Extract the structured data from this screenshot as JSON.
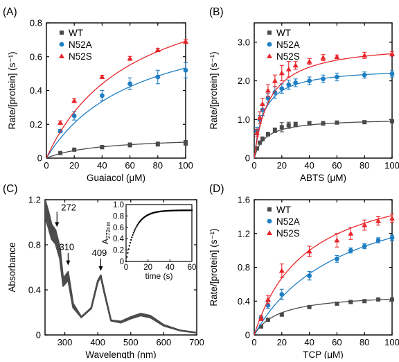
{
  "colors": {
    "wt": "#4a4a4a",
    "n52a": "#1f7fc4",
    "n52s": "#e8262b",
    "spectrum": "#4d4d4d"
  },
  "chart_data": [
    {
      "id": "A",
      "panel_label": "(A)",
      "type": "scatter",
      "xlabel": "Guaiacol (μM)",
      "ylabel": "Rate/[protein] (s⁻¹)",
      "xlim": [
        0,
        100
      ],
      "ylim": [
        0,
        0.8
      ],
      "xticks": [
        0,
        20,
        40,
        60,
        80,
        100
      ],
      "yticks": [
        0,
        0.2,
        0.4,
        0.6,
        0.8
      ],
      "ytick_labels": [
        "0",
        "0.2",
        "0.4",
        "0.6",
        "0.8"
      ],
      "legend": "top-left",
      "series": [
        {
          "name": "WT",
          "marker": "square",
          "color": "#4a4a4a",
          "x": [
            10,
            20,
            40,
            60,
            80,
            100
          ],
          "y": [
            0.03,
            0.05,
            0.065,
            0.078,
            0.083,
            0.09
          ],
          "err": [
            0.005,
            0.006,
            0.01,
            0.012,
            0.012,
            0.015
          ],
          "fit": {
            "vmax": 0.13,
            "km": 38
          }
        },
        {
          "name": "N52A",
          "marker": "circle",
          "color": "#1f7fc4",
          "x": [
            10,
            20,
            40,
            60,
            80,
            100
          ],
          "y": [
            0.16,
            0.25,
            0.37,
            0.44,
            0.48,
            0.52
          ],
          "err": [
            0.01,
            0.025,
            0.03,
            0.035,
            0.04,
            0.045
          ],
          "fit": {
            "vmax": 0.88,
            "km": 65
          }
        },
        {
          "name": "N52S",
          "marker": "triangle",
          "color": "#e8262b",
          "x": [
            10,
            20,
            40,
            60,
            80,
            100
          ],
          "y": [
            0.21,
            0.34,
            0.48,
            0.59,
            0.64,
            0.69
          ],
          "err": [
            0.01,
            0.012,
            0.01,
            0.012,
            0.01,
            0.012
          ],
          "fit": {
            "vmax": 1.12,
            "km": 62
          }
        }
      ]
    },
    {
      "id": "B",
      "panel_label": "(B)",
      "type": "scatter",
      "xlabel": "ABTS (μM)",
      "ylabel": "Rate/[protein] (s⁻¹)",
      "xlim": [
        0,
        100
      ],
      "ylim": [
        0,
        3.5
      ],
      "xticks": [
        0,
        20,
        40,
        60,
        80,
        100
      ],
      "yticks": [
        0,
        1,
        2,
        3
      ],
      "ytick_labels": [
        "0",
        "1.0",
        "2.0",
        "3.0"
      ],
      "legend": "top-left",
      "series": [
        {
          "name": "WT",
          "marker": "square",
          "color": "#4a4a4a",
          "x": [
            2,
            4,
            6,
            10,
            15,
            20,
            25,
            30,
            40,
            50,
            60,
            80,
            100
          ],
          "y": [
            0.25,
            0.4,
            0.5,
            0.62,
            0.72,
            0.8,
            0.85,
            0.87,
            0.9,
            0.9,
            0.92,
            0.93,
            0.95
          ],
          "err": [
            0.03,
            0.04,
            0.05,
            0.05,
            0.06,
            0.12,
            0.08,
            0.06,
            0.05,
            0.05,
            0.04,
            0.04,
            0.04
          ],
          "fit": {
            "vmax": 1.03,
            "km": 8
          }
        },
        {
          "name": "N52A",
          "marker": "circle",
          "color": "#1f7fc4",
          "x": [
            2,
            4,
            6,
            10,
            15,
            20,
            25,
            30,
            40,
            50,
            60,
            80,
            100
          ],
          "y": [
            0.7,
            1.0,
            1.25,
            1.55,
            1.7,
            1.8,
            1.9,
            1.95,
            2.0,
            2.05,
            2.1,
            2.15,
            2.18
          ],
          "err": [
            0.1,
            0.1,
            0.15,
            0.12,
            0.15,
            0.12,
            0.12,
            0.1,
            0.1,
            0.1,
            0.1,
            0.08,
            0.08
          ],
          "fit": {
            "vmax": 2.35,
            "km": 7
          }
        },
        {
          "name": "N52S",
          "marker": "triangle",
          "color": "#e8262b",
          "x": [
            2,
            4,
            6,
            10,
            15,
            20,
            25,
            30,
            40,
            50,
            60,
            80,
            100
          ],
          "y": [
            0.65,
            1.05,
            1.4,
            1.75,
            2.0,
            2.2,
            2.3,
            2.4,
            2.5,
            2.6,
            2.62,
            2.66,
            2.7
          ],
          "err": [
            0.1,
            0.15,
            0.15,
            0.15,
            0.15,
            0.2,
            0.2,
            0.1,
            0.08,
            0.08,
            0.05,
            0.08,
            0.06
          ],
          "fit": {
            "vmax": 3.0,
            "km": 11
          }
        }
      ]
    },
    {
      "id": "C",
      "panel_label": "(C)",
      "type": "line",
      "xlabel": "Wavelength (nm)",
      "ylabel": "Absorbance",
      "xlim": [
        240,
        700
      ],
      "ylim": [
        0,
        1.2
      ],
      "xticks": [
        300,
        400,
        500,
        600,
        700
      ],
      "yticks": [
        0,
        0.4,
        0.8,
        1.2
      ],
      "ytick_labels": [
        "0",
        "0.4",
        "0.8",
        "1.2"
      ],
      "annotations": [
        {
          "text": "272",
          "x": 272,
          "y": 0.97
        },
        {
          "text": "310",
          "x": 310,
          "y": 0.63
        },
        {
          "text": "409",
          "x": 409,
          "y": 0.58
        }
      ],
      "spectrum_points": [
        [
          240,
          1.2
        ],
        [
          250,
          1.1
        ],
        [
          260,
          0.98
        ],
        [
          272,
          0.93
        ],
        [
          285,
          0.78
        ],
        [
          295,
          0.5
        ],
        [
          310,
          0.56
        ],
        [
          325,
          0.28
        ],
        [
          350,
          0.16
        ],
        [
          380,
          0.24
        ],
        [
          400,
          0.48
        ],
        [
          409,
          0.53
        ],
        [
          420,
          0.38
        ],
        [
          440,
          0.13
        ],
        [
          470,
          0.12
        ],
        [
          500,
          0.16
        ],
        [
          530,
          0.19
        ],
        [
          560,
          0.17
        ],
        [
          600,
          0.09
        ],
        [
          650,
          0.04
        ],
        [
          700,
          0.02
        ]
      ],
      "spectrum_band": 0.06,
      "inset": {
        "type": "scatter",
        "xlabel": "time (s)",
        "ylabel": "A272nm",
        "ylabel_main": "A",
        "ylabel_sub": "272nm",
        "xlim": [
          0,
          60
        ],
        "ylim": [
          0,
          1.0
        ],
        "xticks": [
          0,
          20,
          40,
          60
        ],
        "yticks": [
          0,
          0.2,
          0.4,
          0.6,
          0.8,
          1.0
        ],
        "ytick_labels": [
          "0",
          "0.2",
          "0.4",
          "0.6",
          "0.8",
          "1.0"
        ],
        "model": {
          "amp": 0.9,
          "rate": 0.12,
          "t_start": 0,
          "t_end": 60,
          "n_points": 80
        }
      }
    },
    {
      "id": "D",
      "panel_label": "(D)",
      "type": "scatter",
      "xlabel": "TCP (μM)",
      "ylabel": "Rate/[protein] (s⁻¹)",
      "xlim": [
        0,
        100
      ],
      "ylim": [
        0,
        1.6
      ],
      "xticks": [
        0,
        20,
        40,
        60,
        80,
        100
      ],
      "yticks": [
        0,
        0.4,
        0.8,
        1.2,
        1.6
      ],
      "ytick_labels": [
        "0",
        "0.4",
        "0.8",
        "1.2",
        "1.6"
      ],
      "legend": "top-left",
      "series": [
        {
          "name": "WT",
          "marker": "square",
          "color": "#4a4a4a",
          "x": [
            5,
            10,
            20,
            40,
            60,
            70,
            80,
            90,
            100
          ],
          "y": [
            0.1,
            0.18,
            0.24,
            0.33,
            0.37,
            0.39,
            0.4,
            0.42,
            0.42
          ],
          "err": [
            0.01,
            0.01,
            0.01,
            0.015,
            0.015,
            0.015,
            0.015,
            0.015,
            0.015
          ],
          "fit": {
            "vmax": 0.5,
            "km": 18
          }
        },
        {
          "name": "N52A",
          "marker": "circle",
          "color": "#1f7fc4",
          "x": [
            5,
            10,
            20,
            40,
            60,
            70,
            80,
            90,
            100
          ],
          "y": [
            0.2,
            0.35,
            0.48,
            0.7,
            0.9,
            1.0,
            1.05,
            1.12,
            1.15
          ],
          "err": [
            0.03,
            0.04,
            0.06,
            0.05,
            0.04,
            0.03,
            0.03,
            0.03,
            0.03
          ],
          "fit": {
            "vmax": 1.9,
            "km": 65
          }
        },
        {
          "name": "N52S",
          "marker": "triangle",
          "color": "#e8262b",
          "x": [
            5,
            10,
            20,
            40,
            60,
            70,
            80,
            90,
            100
          ],
          "y": [
            0.2,
            0.42,
            0.76,
            0.99,
            1.12,
            1.2,
            1.3,
            1.35,
            1.38
          ],
          "err": [
            0.03,
            0.05,
            0.08,
            0.06,
            0.08,
            0.07,
            0.06,
            0.05,
            0.05
          ],
          "fit": {
            "vmax": 1.95,
            "km": 38
          }
        }
      ]
    }
  ]
}
